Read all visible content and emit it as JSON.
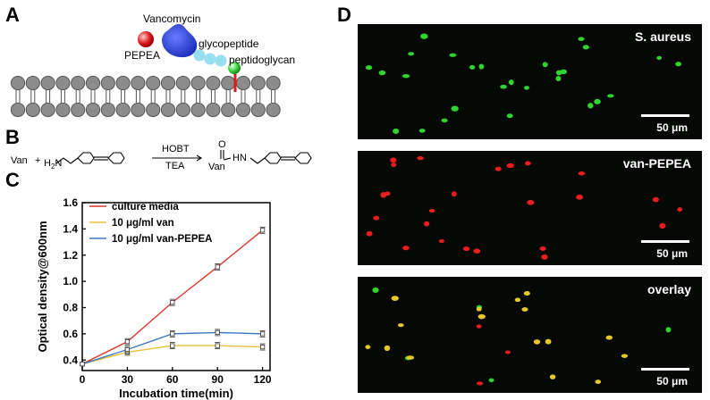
{
  "panels": {
    "a": "A",
    "b": "B",
    "c": "C",
    "d": "D"
  },
  "schematic": {
    "vancomycin": "Vancomycin",
    "pepea": "PEPEA",
    "glycopeptide": "glycopeptide",
    "peptidoglycan": "peptidoglycan"
  },
  "reaction": {
    "reactant1": "Van",
    "plus": "+",
    "amine_prefix": "H",
    "amine_sub": "2",
    "amine_suffix": "N",
    "reagent_top": "HOBT",
    "reagent_bottom": "TEA",
    "product_o": "O",
    "product_hn": "HN",
    "product_van": "Van"
  },
  "microscopy": {
    "top_label": "S. aureus",
    "middle_label": "van-PEPEA",
    "bottom_label": "overlay",
    "scale_label": "50 μm",
    "colors": {
      "green": "#2fd42f",
      "red": "#e81e1e",
      "yellow": "#e6c82a"
    }
  },
  "chart_data": {
    "type": "line",
    "xlabel": "Incubation time(min)",
    "ylabel": "Optical density@600nm",
    "xlim": [
      0,
      125
    ],
    "ylim": [
      0.32,
      1.6
    ],
    "xticks": [
      0,
      30,
      60,
      90,
      120
    ],
    "yticks": [
      0.4,
      0.6,
      0.8,
      1.0,
      1.2,
      1.4,
      1.6
    ],
    "ytick_labels": [
      "0.4",
      "0.6",
      "0.8",
      "1.0",
      "1.2",
      "1.4",
      "1.6"
    ],
    "x": [
      0,
      30,
      60,
      90,
      120
    ],
    "legend_position": "top-left",
    "series": [
      {
        "name": "culture media",
        "color": "#d9372a",
        "values": [
          0.37,
          0.54,
          0.84,
          1.11,
          1.39
        ]
      },
      {
        "name": "10 μg/ml van",
        "color": "#e8c23a",
        "values": [
          0.37,
          0.46,
          0.51,
          0.51,
          0.5
        ]
      },
      {
        "name": "10 μg/ml van-PEPEA",
        "color": "#3f78c0",
        "values": [
          0.37,
          0.48,
          0.6,
          0.61,
          0.6
        ]
      }
    ]
  }
}
